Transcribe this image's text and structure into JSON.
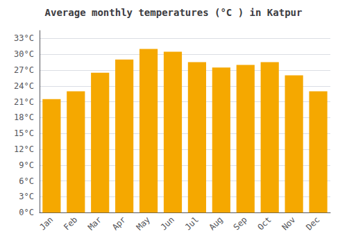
{
  "chart_data": {
    "type": "bar",
    "title": "Average monthly temperatures (°C ) in Katpur",
    "categories": [
      "Jan",
      "Feb",
      "Mar",
      "Apr",
      "May",
      "Jun",
      "Jul",
      "Aug",
      "Sep",
      "Oct",
      "Nov",
      "Dec"
    ],
    "values": [
      21.5,
      23.0,
      26.5,
      29.0,
      31.0,
      30.5,
      28.5,
      27.5,
      28.0,
      28.5,
      26.0,
      23.0
    ],
    "color": "#F5A800",
    "ylim": [
      0,
      34.5
    ],
    "yticks": [
      {
        "value": 0,
        "label": "0°C"
      },
      {
        "value": 3,
        "label": "3°C"
      },
      {
        "value": 6,
        "label": "6°C"
      },
      {
        "value": 9,
        "label": "9°C"
      },
      {
        "value": 12,
        "label": "12°C"
      },
      {
        "value": 15,
        "label": "15°C"
      },
      {
        "value": 18,
        "label": "18°C"
      },
      {
        "value": 21,
        "label": "21°C"
      },
      {
        "value": 24,
        "label": "24°C"
      },
      {
        "value": 27,
        "label": "27°C"
      },
      {
        "value": 30,
        "label": "30°C"
      },
      {
        "value": 33,
        "label": "33°C"
      }
    ],
    "grid": true
  }
}
